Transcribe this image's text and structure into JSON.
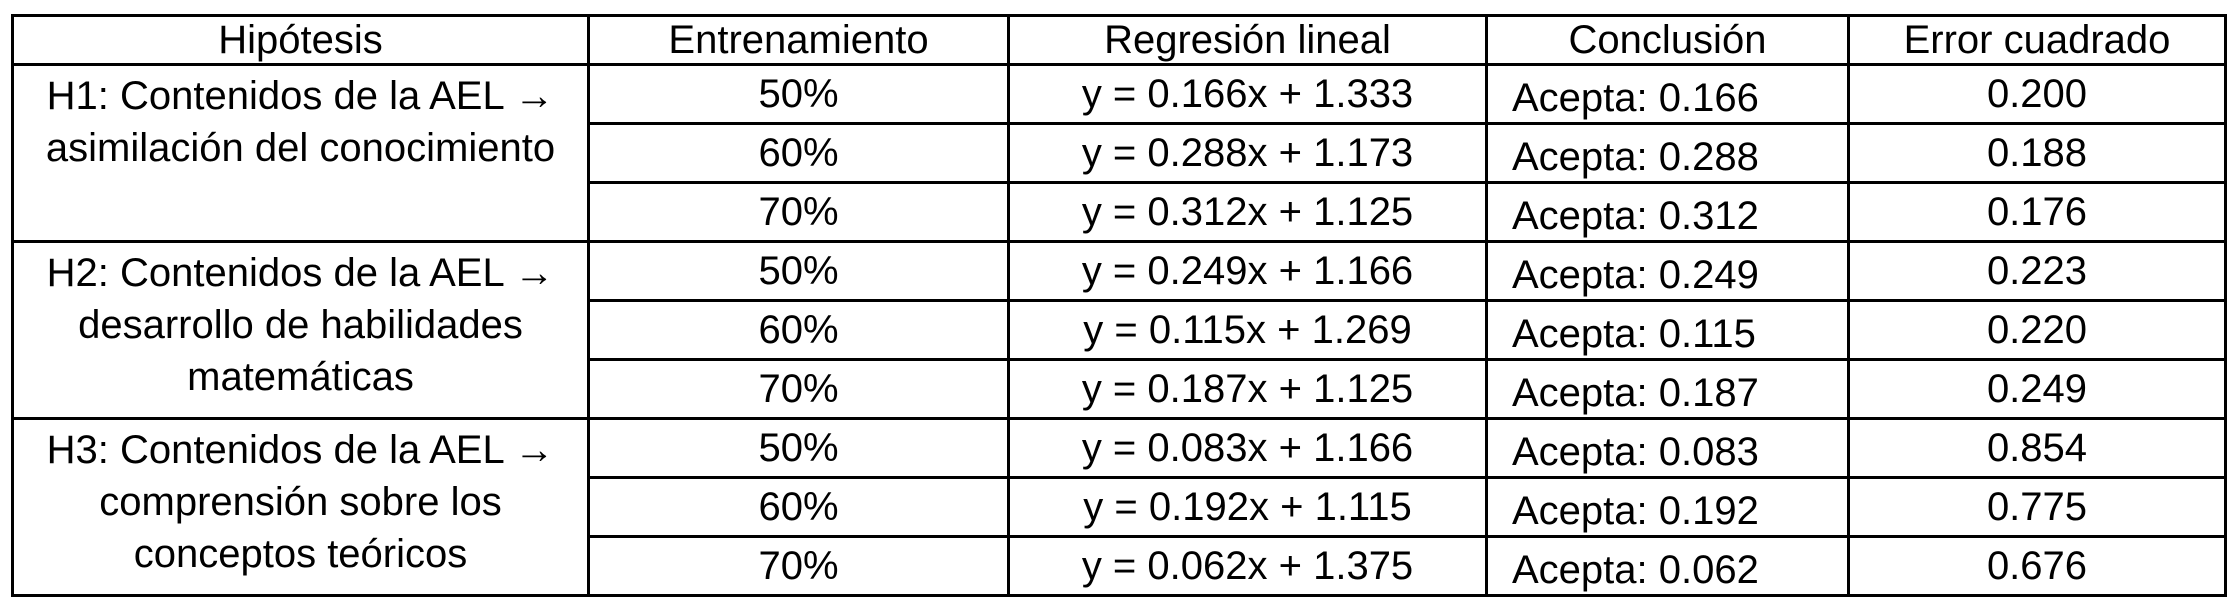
{
  "table": {
    "header": [
      "Hipótesis",
      "Entrenamiento",
      "Regresión lineal",
      "Conclusión",
      "Error cuadrado"
    ],
    "groups": [
      {
        "hypothesis": "H1: Contenidos de la AEL → asimilación del conocimiento",
        "rows": [
          [
            "50%",
            "y = 0.166x + 1.333",
            "Acepta: 0.166",
            "0.200"
          ],
          [
            "60%",
            "y = 0.288x + 1.173",
            "Acepta: 0.288",
            "0.188"
          ],
          [
            "70%",
            "y = 0.312x + 1.125",
            "Acepta: 0.312",
            "0.176"
          ]
        ]
      },
      {
        "hypothesis": "H2: Contenidos de la AEL → desarrollo de habilidades matemáticas",
        "rows": [
          [
            "50%",
            "y = 0.249x + 1.166",
            "Acepta: 0.249",
            "0.223"
          ],
          [
            "60%",
            "y = 0.115x + 1.269",
            "Acepta: 0.115",
            "0.220"
          ],
          [
            "70%",
            "y = 0.187x + 1.125",
            "Acepta: 0.187",
            "0.249"
          ]
        ]
      },
      {
        "hypothesis": "H3: Contenidos de la AEL → comprensión sobre los conceptos teóricos",
        "rows": [
          [
            "50%",
            "y = 0.083x + 1.166",
            "Acepta: 0.083",
            "0.854"
          ],
          [
            "60%",
            "y = 0.192x + 1.115",
            "Acepta: 0.192",
            "0.775"
          ],
          [
            "70%",
            "y = 0.062x + 1.375",
            "Acepta: 0.062",
            "0.676"
          ]
        ]
      }
    ]
  }
}
